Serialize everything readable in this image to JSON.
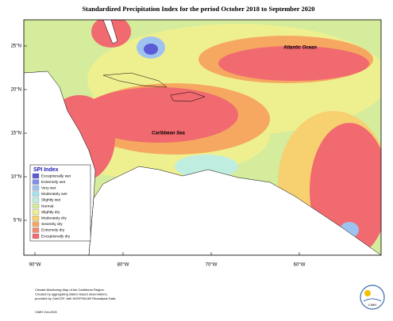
{
  "header": {
    "title": "Standardized Precipitation Index for the period October 2018 to September 2020"
  },
  "map": {
    "labels": [
      "Atlantic Ocean",
      "Caribbean Sea"
    ],
    "lat_ticks": [
      {
        "value": 25,
        "label": "25°N"
      },
      {
        "value": 20,
        "label": "20°N"
      },
      {
        "value": 15,
        "label": "15°N"
      },
      {
        "value": 10,
        "label": "10°N"
      },
      {
        "value": 5,
        "label": "5°N"
      }
    ],
    "lon_ticks": [
      {
        "value": -90,
        "label": "90°W"
      },
      {
        "value": -80,
        "label": "80°W"
      },
      {
        "value": -70,
        "label": "70°W"
      },
      {
        "value": -60,
        "label": "60°W"
      }
    ]
  },
  "legend": {
    "title": "SPI Index",
    "items": [
      {
        "label": "Exceptionally wet",
        "color": "#5b5bd6"
      },
      {
        "label": "Extremely wet",
        "color": "#7f8fe8"
      },
      {
        "label": "Very wet",
        "color": "#9fc3f0"
      },
      {
        "label": "Moderately wet",
        "color": "#a7e3ee"
      },
      {
        "label": "Slightly wet",
        "color": "#bfeee0"
      },
      {
        "label": "Normal",
        "color": "#d4ec9c"
      },
      {
        "label": "Slightly dry",
        "color": "#eef090"
      },
      {
        "label": "Moderately dry",
        "color": "#f7d070"
      },
      {
        "label": "Severely dry",
        "color": "#f6a860"
      },
      {
        "label": "Extremely dry",
        "color": "#f48a70"
      },
      {
        "label": "Exceptionally dry",
        "color": "#f06a70"
      }
    ]
  },
  "footer": {
    "lines": [
      "Climate Monitoring Map of the Caribbean Region.",
      "Created by aggregating station based observations,",
      "provided by CariCOF, with NCEP/NCAR Reanalysis Data."
    ],
    "credit": "CIMH Oct-2020",
    "logo": "CIMH"
  }
}
